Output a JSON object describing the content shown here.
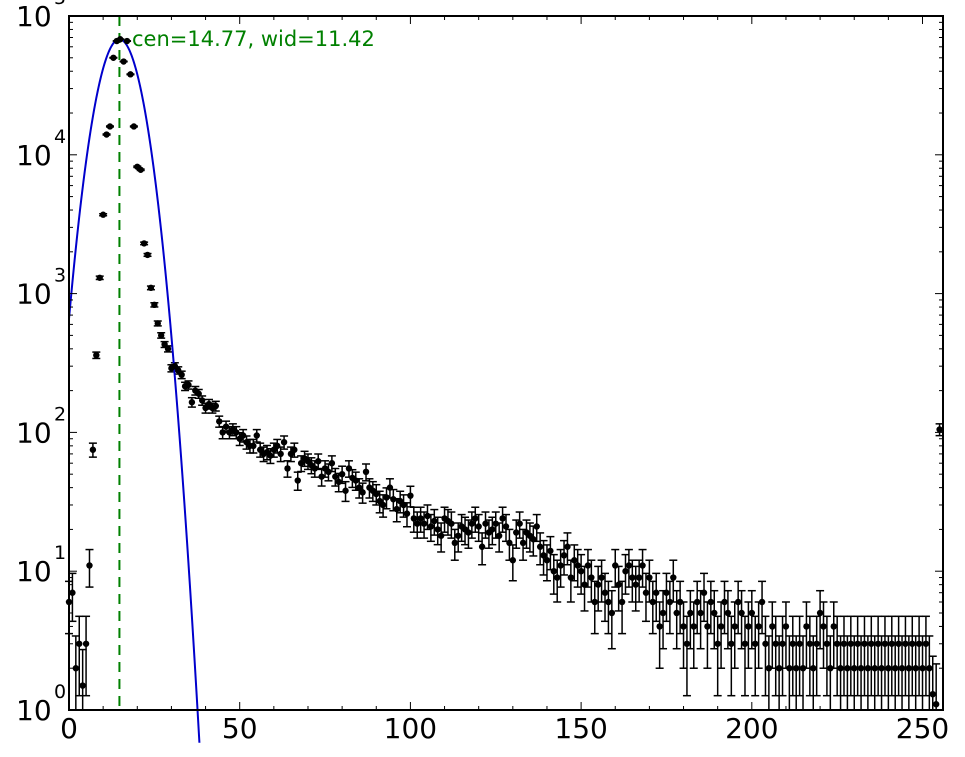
{
  "chart_data": {
    "type": "scatter",
    "title": "",
    "xlabel": "",
    "ylabel": "",
    "x_scale": "linear",
    "y_scale": "log",
    "xlim": [
      0,
      256
    ],
    "ylim": [
      1,
      100000
    ],
    "grid": false,
    "legend": "none",
    "x_ticks": [
      {
        "value": 0,
        "label": "0"
      },
      {
        "value": 50,
        "label": "50"
      },
      {
        "value": 100,
        "label": "100"
      },
      {
        "value": 150,
        "label": "150"
      },
      {
        "value": 200,
        "label": "200"
      },
      {
        "value": 250,
        "label": "250"
      }
    ],
    "y_ticks": [
      {
        "value": 1,
        "base": "10",
        "exp": "0"
      },
      {
        "value": 10,
        "base": "10",
        "exp": "1"
      },
      {
        "value": 100,
        "base": "10",
        "exp": "2"
      },
      {
        "value": 1000,
        "base": "10",
        "exp": "3"
      },
      {
        "value": 10000,
        "base": "10",
        "exp": "4"
      },
      {
        "value": 100000,
        "base": "10",
        "exp": "5"
      }
    ],
    "series": [
      {
        "kind": "data",
        "color": "#000000",
        "points": [
          [
            0,
            6
          ],
          [
            1,
            7
          ],
          [
            2,
            2
          ],
          [
            3,
            3
          ],
          [
            4,
            1.5
          ],
          [
            5,
            3
          ],
          [
            6,
            11
          ],
          [
            7,
            75
          ],
          [
            8,
            360
          ],
          [
            9,
            1300
          ],
          [
            10,
            3700
          ],
          [
            11,
            14000
          ],
          [
            12,
            16000
          ],
          [
            13,
            50000
          ],
          [
            14,
            66000
          ],
          [
            15,
            68000
          ],
          [
            16,
            47000
          ],
          [
            17,
            66000
          ],
          [
            18,
            38000
          ],
          [
            19,
            16000
          ],
          [
            20,
            8200
          ],
          [
            21,
            7800
          ],
          [
            22,
            2300
          ],
          [
            23,
            1900
          ],
          [
            24,
            1100
          ],
          [
            25,
            830
          ],
          [
            26,
            610
          ],
          [
            27,
            500
          ],
          [
            28,
            430
          ],
          [
            29,
            400
          ],
          [
            30,
            290
          ],
          [
            31,
            300
          ],
          [
            32,
            280
          ],
          [
            33,
            260
          ],
          [
            34,
            215
          ],
          [
            35,
            220
          ],
          [
            36,
            165
          ],
          [
            37,
            200
          ],
          [
            38,
            190
          ],
          [
            39,
            170
          ],
          [
            40,
            150
          ],
          [
            41,
            160
          ],
          [
            42,
            150
          ],
          [
            43,
            155
          ],
          [
            44,
            120
          ],
          [
            45,
            100
          ],
          [
            46,
            110
          ],
          [
            47,
            100
          ],
          [
            48,
            105
          ],
          [
            49,
            100
          ],
          [
            50,
            90
          ],
          [
            51,
            95
          ],
          [
            52,
            85
          ],
          [
            53,
            80
          ],
          [
            54,
            80
          ],
          [
            55,
            95
          ],
          [
            56,
            75
          ],
          [
            57,
            70
          ],
          [
            58,
            72
          ],
          [
            59,
            68
          ],
          [
            60,
            75
          ],
          [
            61,
            80
          ],
          [
            62,
            70
          ],
          [
            63,
            85
          ],
          [
            64,
            55
          ],
          [
            65,
            70
          ],
          [
            66,
            75
          ],
          [
            67,
            45
          ],
          [
            68,
            60
          ],
          [
            69,
            65
          ],
          [
            70,
            62
          ],
          [
            71,
            58
          ],
          [
            72,
            55
          ],
          [
            73,
            62
          ],
          [
            74,
            48
          ],
          [
            75,
            55
          ],
          [
            76,
            52
          ],
          [
            77,
            60
          ],
          [
            78,
            48
          ],
          [
            79,
            44
          ],
          [
            80,
            50
          ],
          [
            81,
            38
          ],
          [
            82,
            55
          ],
          [
            83,
            47
          ],
          [
            84,
            45
          ],
          [
            85,
            40
          ],
          [
            86,
            37
          ],
          [
            87,
            52
          ],
          [
            88,
            40
          ],
          [
            89,
            38
          ],
          [
            90,
            36
          ],
          [
            91,
            32
          ],
          [
            92,
            30
          ],
          [
            93,
            34
          ],
          [
            94,
            40
          ],
          [
            95,
            33
          ],
          [
            96,
            28
          ],
          [
            97,
            32
          ],
          [
            98,
            30
          ],
          [
            99,
            26
          ],
          [
            100,
            35
          ],
          [
            101,
            24
          ],
          [
            102,
            22
          ],
          [
            103,
            24
          ],
          [
            104,
            22
          ],
          [
            105,
            25
          ],
          [
            106,
            21
          ],
          [
            107,
            23
          ],
          [
            108,
            20
          ],
          [
            109,
            18
          ],
          [
            110,
            24
          ],
          [
            111,
            23
          ],
          [
            112,
            22
          ],
          [
            113,
            16
          ],
          [
            114,
            18
          ],
          [
            115,
            21
          ],
          [
            116,
            20
          ],
          [
            117,
            19
          ],
          [
            118,
            22
          ],
          [
            119,
            24
          ],
          [
            120,
            21
          ],
          [
            121,
            15
          ],
          [
            122,
            22
          ],
          [
            123,
            19
          ],
          [
            124,
            20
          ],
          [
            125,
            22
          ],
          [
            126,
            18
          ],
          [
            127,
            24
          ],
          [
            128,
            21
          ],
          [
            129,
            16
          ],
          [
            130,
            12
          ],
          [
            131,
            19
          ],
          [
            132,
            22
          ],
          [
            133,
            16
          ],
          [
            134,
            19
          ],
          [
            135,
            18
          ],
          [
            136,
            17
          ],
          [
            137,
            21
          ],
          [
            138,
            15
          ],
          [
            139,
            13
          ],
          [
            140,
            12
          ],
          [
            141,
            14
          ],
          [
            142,
            10
          ],
          [
            143,
            9
          ],
          [
            144,
            11
          ],
          [
            145,
            13
          ],
          [
            146,
            15
          ],
          [
            147,
            9
          ],
          [
            148,
            12
          ],
          [
            149,
            11
          ],
          [
            150,
            10
          ],
          [
            151,
            8
          ],
          [
            152,
            11
          ],
          [
            153,
            9
          ],
          [
            154,
            6
          ],
          [
            155,
            8
          ],
          [
            156,
            9
          ],
          [
            157,
            7
          ],
          [
            158,
            6
          ],
          [
            159,
            5
          ],
          [
            160,
            11
          ],
          [
            161,
            8
          ],
          [
            162,
            6
          ],
          [
            163,
            10
          ],
          [
            164,
            11
          ],
          [
            165,
            9
          ],
          [
            166,
            8
          ],
          [
            167,
            9
          ],
          [
            168,
            11
          ],
          [
            169,
            7
          ],
          [
            170,
            9
          ],
          [
            171,
            6
          ],
          [
            172,
            7
          ],
          [
            173,
            4
          ],
          [
            174,
            5
          ],
          [
            175,
            7
          ],
          [
            176,
            6
          ],
          [
            177,
            9
          ],
          [
            178,
            5
          ],
          [
            179,
            6
          ],
          [
            180,
            4
          ],
          [
            181,
            3
          ],
          [
            182,
            5
          ],
          [
            183,
            4
          ],
          [
            184,
            6
          ],
          [
            185,
            5
          ],
          [
            186,
            7
          ],
          [
            187,
            4
          ],
          [
            188,
            6
          ],
          [
            189,
            5
          ],
          [
            190,
            3
          ],
          [
            191,
            4
          ],
          [
            192,
            6
          ],
          [
            193,
            5
          ],
          [
            194,
            3
          ],
          [
            195,
            4
          ],
          [
            196,
            6
          ],
          [
            197,
            5
          ],
          [
            198,
            3
          ],
          [
            199,
            4
          ],
          [
            200,
            5
          ],
          [
            201,
            3
          ],
          [
            202,
            4
          ],
          [
            203,
            6
          ],
          [
            204,
            3
          ],
          [
            205,
            2
          ],
          [
            206,
            4
          ],
          [
            207,
            3
          ],
          [
            208,
            2
          ],
          [
            209,
            3
          ],
          [
            210,
            4
          ],
          [
            211,
            2
          ],
          [
            212,
            3
          ],
          [
            213,
            2
          ],
          [
            214,
            3
          ],
          [
            215,
            2
          ],
          [
            216,
            4
          ],
          [
            217,
            3
          ],
          [
            218,
            2
          ],
          [
            219,
            3
          ],
          [
            220,
            5
          ],
          [
            221,
            4
          ],
          [
            222,
            3
          ],
          [
            223,
            2
          ],
          [
            224,
            4
          ],
          [
            225,
            3
          ],
          [
            226,
            2
          ],
          [
            227,
            3
          ],
          [
            228,
            2
          ],
          [
            229,
            3
          ],
          [
            230,
            2
          ],
          [
            231,
            3
          ],
          [
            232,
            2
          ],
          [
            233,
            3
          ],
          [
            234,
            2
          ],
          [
            235,
            3
          ],
          [
            236,
            2
          ],
          [
            237,
            3
          ],
          [
            238,
            2
          ],
          [
            239,
            3
          ],
          [
            240,
            2
          ],
          [
            241,
            3
          ],
          [
            242,
            2
          ],
          [
            243,
            3
          ],
          [
            244,
            2
          ],
          [
            245,
            3
          ],
          [
            246,
            2
          ],
          [
            247,
            3
          ],
          [
            248,
            2
          ],
          [
            249,
            3
          ],
          [
            250,
            2
          ],
          [
            251,
            3
          ],
          [
            252,
            2
          ],
          [
            253,
            1.3
          ],
          [
            254,
            1.1
          ],
          [
            255,
            105
          ]
        ]
      },
      {
        "kind": "gaussian-fit",
        "color": "#0000cc",
        "center": 14.77,
        "fwhm": 11.42,
        "amplitude": 68000
      }
    ],
    "center_line": {
      "x": 14.77,
      "color": "#008000",
      "style": "dashed"
    },
    "annotation": {
      "text": "cen=14.77, wid=11.42",
      "color": "#008000"
    }
  }
}
